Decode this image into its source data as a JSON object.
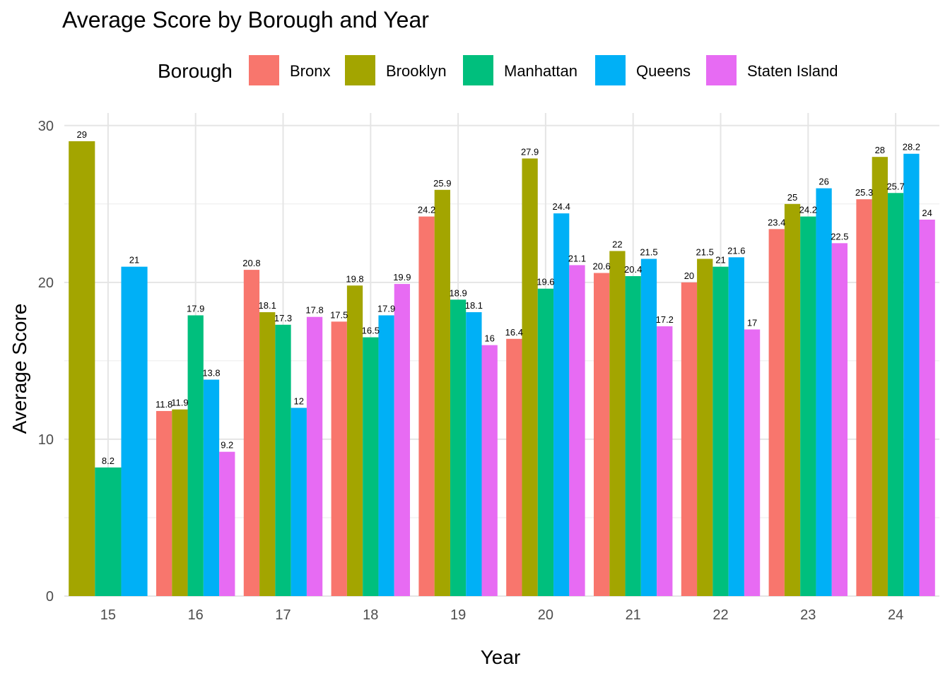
{
  "chart_data": {
    "type": "bar",
    "title": "Average Score by Borough and Year",
    "xlabel": "Year",
    "ylabel": "Average Score",
    "ylim": [
      0,
      30
    ],
    "yticks": [
      0,
      10,
      20,
      30
    ],
    "grid": true,
    "legend": {
      "title": "Borough",
      "position": "top"
    },
    "categories": [
      "15",
      "16",
      "17",
      "18",
      "19",
      "20",
      "21",
      "22",
      "23",
      "24"
    ],
    "series": [
      {
        "name": "Bronx",
        "color": "#F8766D",
        "values": [
          null,
          11.8,
          20.8,
          17.5,
          24.2,
          16.4,
          20.6,
          20,
          23.4,
          25.3
        ],
        "labels": [
          "",
          "11.8",
          "20.8",
          "17.5",
          "24.2",
          "16.4",
          "20.6",
          "20",
          "23.4",
          "25.3"
        ]
      },
      {
        "name": "Brooklyn",
        "color": "#A3A500",
        "values": [
          29,
          11.9,
          18.1,
          19.8,
          25.9,
          27.9,
          22,
          21.5,
          25,
          28
        ],
        "labels": [
          "29",
          "11.9",
          "18.1",
          "19.8",
          "25.9",
          "27.9",
          "22",
          "21.5",
          "25",
          "28"
        ]
      },
      {
        "name": "Manhattan",
        "color": "#00BF7D",
        "values": [
          8.2,
          17.9,
          17.3,
          16.5,
          18.9,
          19.6,
          20.4,
          21,
          24.2,
          25.7
        ],
        "labels": [
          "8.2",
          "17.9",
          "17.3",
          "16.5",
          "18.9",
          "19.6",
          "20.4",
          "21",
          "24.2",
          "25.7"
        ]
      },
      {
        "name": "Queens",
        "color": "#00B0F6",
        "values": [
          21,
          13.8,
          12,
          17.9,
          18.1,
          24.4,
          21.5,
          21.6,
          26,
          28.2
        ],
        "labels": [
          "21",
          "13.8",
          "12",
          "17.9",
          "18.1",
          "24.4",
          "21.5",
          "21.6",
          "26",
          "28.2"
        ]
      },
      {
        "name": "Staten Island",
        "color": "#E76BF3",
        "values": [
          null,
          9.2,
          17.8,
          19.9,
          16,
          21.1,
          17.2,
          17,
          22.5,
          24
        ],
        "labels": [
          "",
          "9.2",
          "17.8",
          "19.9",
          "16",
          "21.1",
          "17.2",
          "17",
          "22.5",
          "24"
        ]
      }
    ]
  }
}
